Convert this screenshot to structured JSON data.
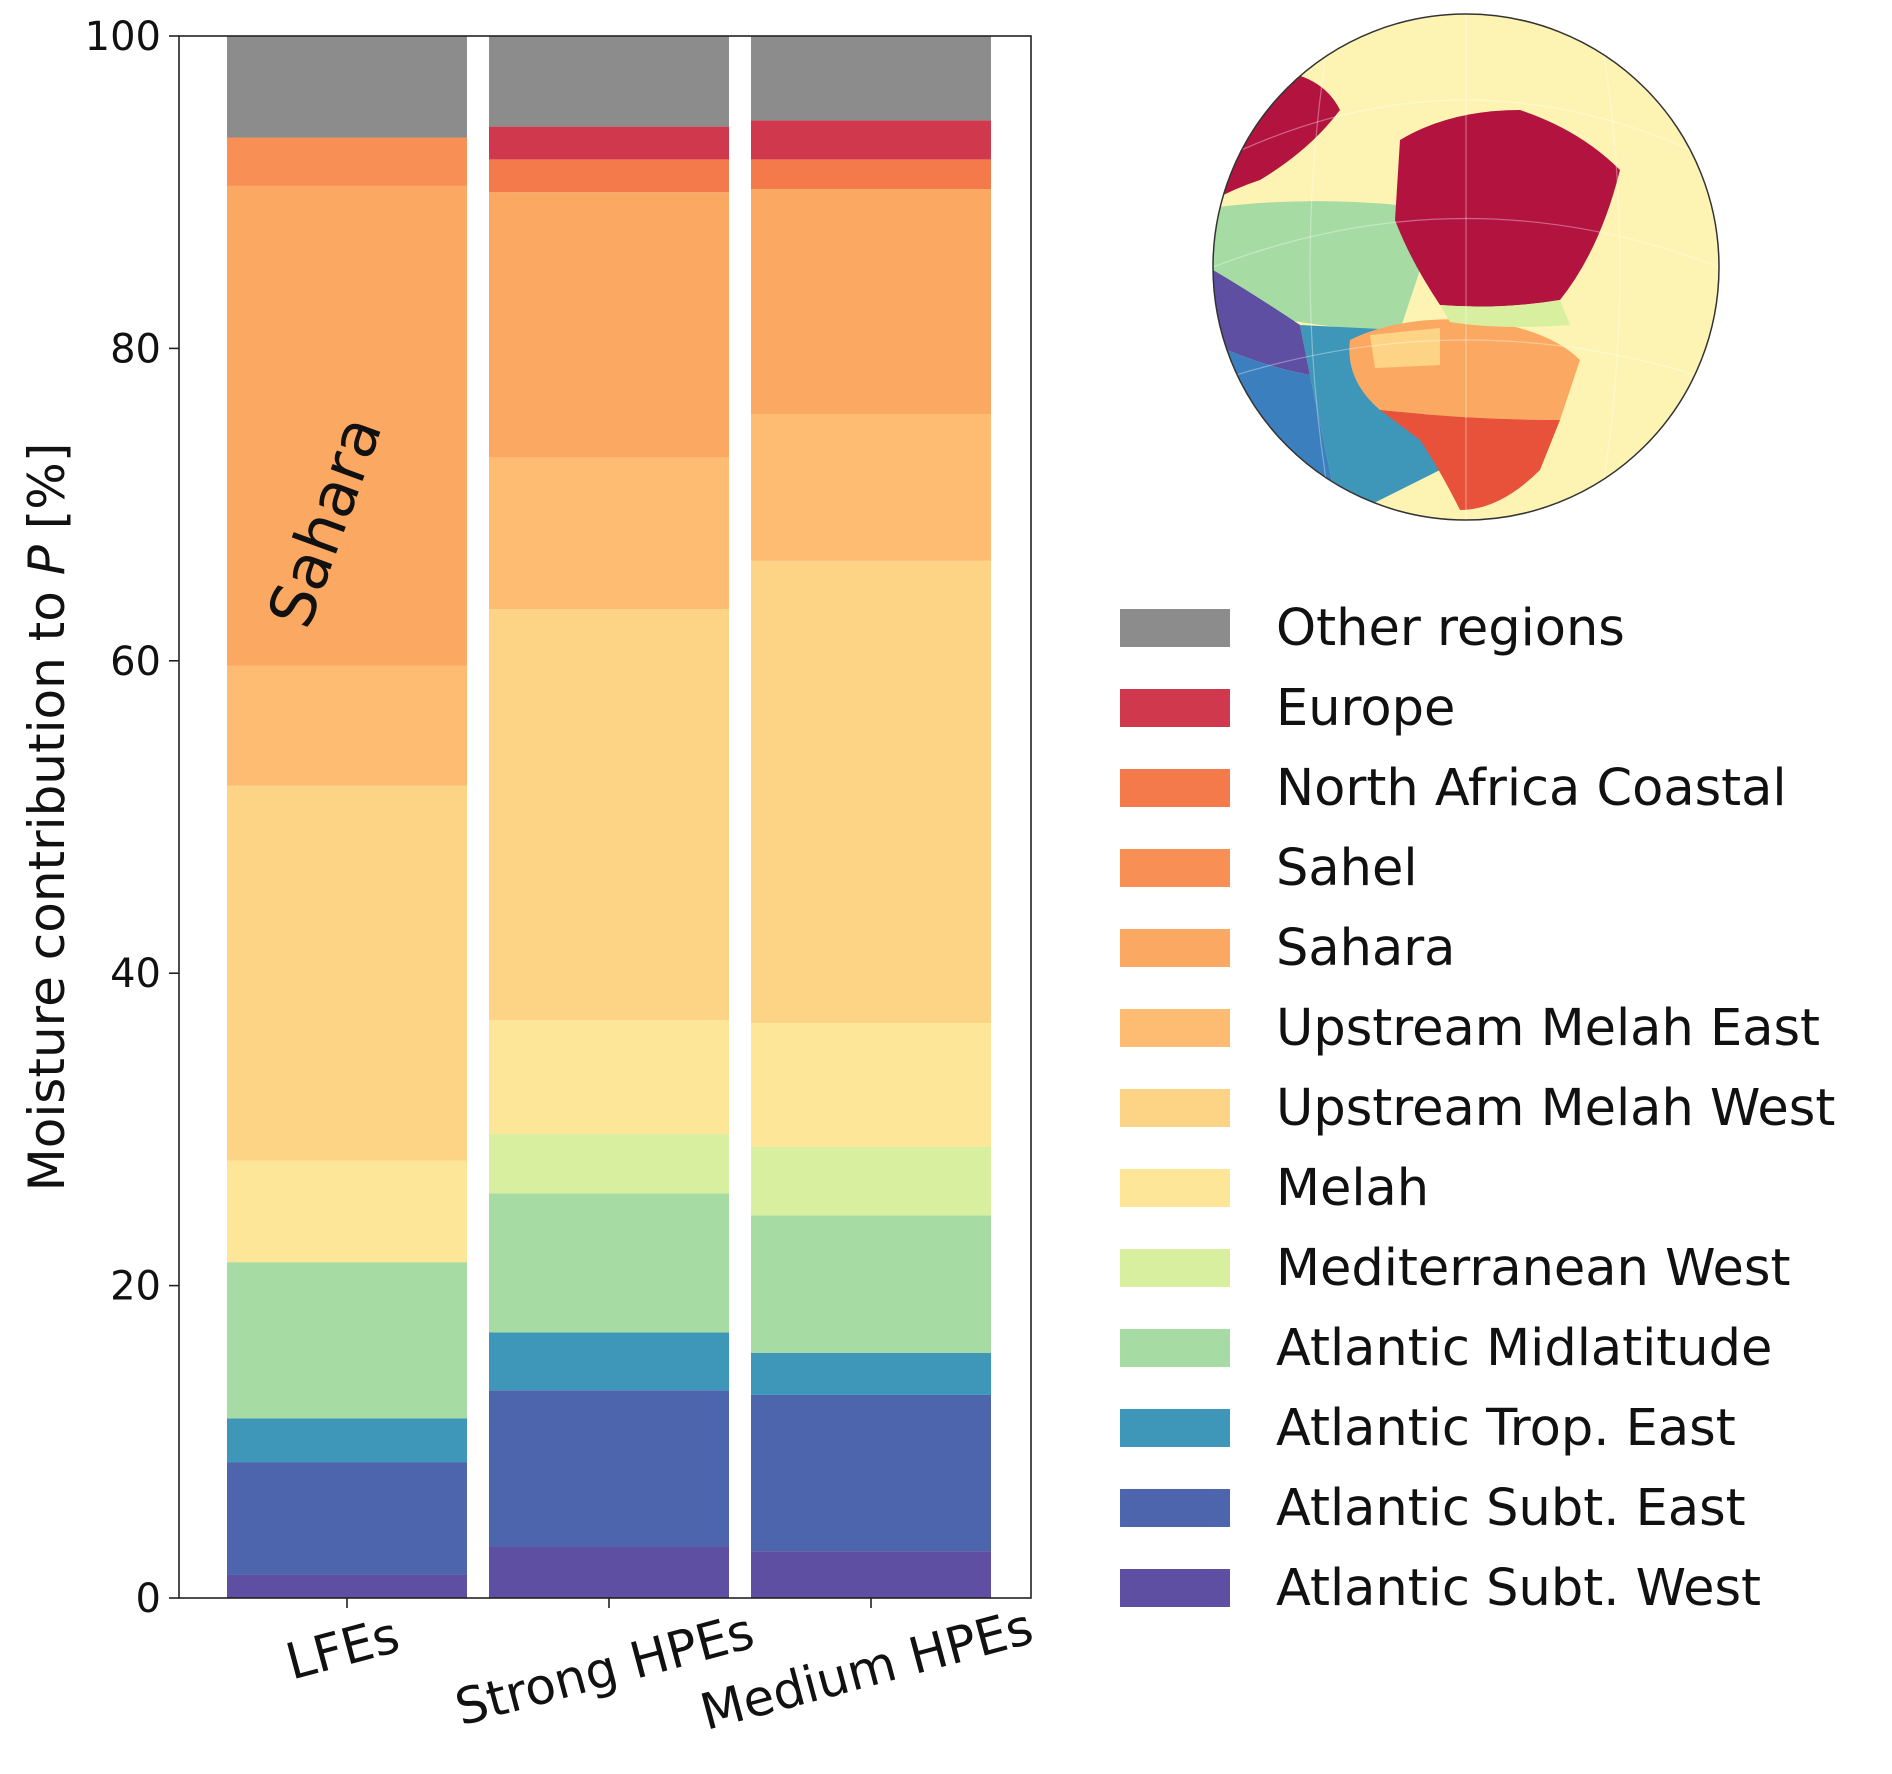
{
  "chart_data": {
    "type": "bar",
    "stacked": true,
    "ylabel_prefix": "Moisture contribution to ",
    "ylabel_var": "P",
    "ylabel_suffix": " [%]",
    "ylim": [
      0,
      100
    ],
    "yticks": [
      0,
      20,
      40,
      60,
      80,
      100
    ],
    "categories": [
      "LFEs",
      "Strong HPEs",
      "Medium HPEs"
    ],
    "annotation": "Sahara",
    "series": [
      {
        "name": "Atlantic Subt. West",
        "color": "#5e4fa2",
        "values": [
          1.5,
          3.3,
          3.0
        ]
      },
      {
        "name": "Atlantic Subt. East",
        "color": "#4c65ad",
        "values": [
          7.2,
          10.0,
          10.0
        ]
      },
      {
        "name": "Atlantic Trop. East",
        "color": "#3e96b8",
        "values": [
          2.8,
          3.7,
          2.7
        ]
      },
      {
        "name": "Atlantic Midlatitude",
        "color": "#a6dba4",
        "values": [
          10.0,
          8.9,
          8.8
        ]
      },
      {
        "name": "Mediterranean West",
        "color": "#d9efa0",
        "values": [
          0.0,
          3.8,
          4.4
        ]
      },
      {
        "name": "Melah",
        "color": "#fde698",
        "values": [
          6.5,
          7.3,
          7.9
        ]
      },
      {
        "name": "Upstream Melah West",
        "color": "#fdd486",
        "values": [
          24.0,
          26.3,
          29.6
        ]
      },
      {
        "name": "Upstream Melah East",
        "color": "#fdbc72",
        "values": [
          7.7,
          9.7,
          9.4
        ]
      },
      {
        "name": "Sahara",
        "color": "#fba962",
        "values": [
          30.7,
          17.0,
          14.4
        ]
      },
      {
        "name": "Sahel",
        "color": "#f88f55",
        "values": [
          3.1,
          0.0,
          0.0
        ]
      },
      {
        "name": "North Africa Coastal",
        "color": "#f57a4b",
        "values": [
          0.0,
          2.1,
          1.9
        ]
      },
      {
        "name": "Europe",
        "color": "#cf384d",
        "values": [
          0.0,
          2.1,
          2.5
        ]
      },
      {
        "name": "Other regions",
        "color": "#8c8c8c",
        "values": [
          6.5,
          5.8,
          5.4
        ]
      }
    ],
    "legend_placement": "right",
    "grid": false
  },
  "map": {
    "ocean_color": "#fdf4b4",
    "europe_color": "#b3143f",
    "midlatitude_color": "#a6dba4",
    "mediterranean_color": "#d9efa0",
    "subt_west_color": "#5e4fa2",
    "subt_east_color": "#3b7fbe",
    "trop_east_color": "#3e96b8",
    "sahara_color": "#fba962",
    "sahel_color": "#e8523a"
  }
}
